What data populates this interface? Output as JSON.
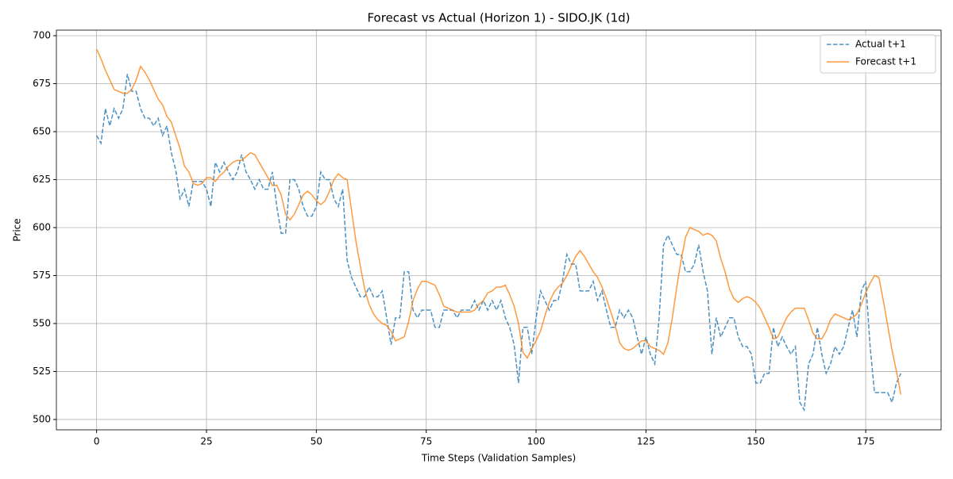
{
  "chart_data": {
    "type": "line",
    "title": "Forecast vs Actual (Horizon 1) - SIDO.JK (1d)",
    "x_label": "Time Steps (Validation Samples)",
    "y_label": "Price",
    "x": [
      0,
      1,
      2,
      3,
      4,
      5,
      6,
      7,
      8,
      9,
      10,
      11,
      12,
      13,
      14,
      15,
      16,
      17,
      18,
      19,
      20,
      21,
      22,
      23,
      24,
      25,
      26,
      27,
      28,
      29,
      30,
      31,
      32,
      33,
      34,
      35,
      36,
      37,
      38,
      39,
      40,
      41,
      42,
      43,
      44,
      45,
      46,
      47,
      48,
      49,
      50,
      51,
      52,
      53,
      54,
      55,
      56,
      57,
      58,
      59,
      60,
      61,
      62,
      63,
      64,
      65,
      66,
      67,
      68,
      69,
      70,
      71,
      72,
      73,
      74,
      75,
      76,
      77,
      78,
      79,
      80,
      81,
      82,
      83,
      84,
      85,
      86,
      87,
      88,
      89,
      90,
      91,
      92,
      93,
      94,
      95,
      96,
      97,
      98,
      99,
      100,
      101,
      102,
      103,
      104,
      105,
      106,
      107,
      108,
      109,
      110,
      111,
      112,
      113,
      114,
      115,
      116,
      117,
      118,
      119,
      120,
      121,
      122,
      123,
      124,
      125,
      126,
      127,
      128,
      129,
      130,
      131,
      132,
      133,
      134,
      135,
      136,
      137,
      138,
      139,
      140,
      141,
      142,
      143,
      144,
      145,
      146,
      147,
      148,
      149,
      150,
      151,
      152,
      153,
      154,
      155,
      156,
      157,
      158,
      159,
      160,
      161,
      162,
      163,
      164,
      165,
      166,
      167,
      168,
      169,
      170,
      171,
      172,
      173,
      174,
      175,
      176,
      177,
      178,
      179,
      180,
      181,
      182,
      183
    ],
    "series": [
      {
        "name": "Actual t+1",
        "color": "#1f77b4",
        "dashed": true,
        "values": [
          648,
          644,
          662,
          653,
          662,
          657,
          662,
          680,
          671,
          671,
          662,
          657,
          657,
          653,
          657,
          648,
          653,
          639,
          630,
          615,
          620,
          611,
          624,
          624,
          624,
          620,
          611,
          634,
          629,
          634,
          629,
          625,
          629,
          638,
          629,
          625,
          620,
          625,
          620,
          620,
          629,
          611,
          597,
          597,
          625,
          625,
          620,
          611,
          606,
          606,
          611,
          629,
          625,
          625,
          615,
          611,
          620,
          583,
          574,
          569,
          564,
          564,
          569,
          564,
          564,
          567,
          553,
          539,
          553,
          553,
          577,
          577,
          557,
          553,
          557,
          557,
          557,
          548,
          548,
          557,
          557,
          557,
          553,
          557,
          557,
          557,
          562,
          557,
          562,
          557,
          562,
          557,
          562,
          553,
          548,
          539,
          519,
          548,
          548,
          534,
          553,
          567,
          562,
          557,
          562,
          562,
          572,
          586,
          581,
          581,
          567,
          567,
          567,
          572,
          562,
          567,
          557,
          548,
          548,
          557,
          553,
          557,
          553,
          543,
          534,
          543,
          534,
          529,
          553,
          591,
          596,
          591,
          586,
          586,
          577,
          577,
          581,
          591,
          577,
          567,
          534,
          553,
          543,
          548,
          553,
          553,
          543,
          538,
          538,
          534,
          519,
          519,
          524,
          524,
          548,
          538,
          543,
          538,
          534,
          538,
          509,
          505,
          529,
          534,
          548,
          534,
          524,
          529,
          538,
          534,
          538,
          548,
          557,
          543,
          567,
          572,
          538,
          514,
          514,
          514,
          514,
          509,
          519,
          524
        ]
      },
      {
        "name": "Forecast t+1",
        "color": "#ff7f0e",
        "dashed": false,
        "values": [
          693,
          688,
          682,
          677,
          672,
          671,
          670,
          670,
          672,
          677,
          684,
          681,
          677,
          672,
          667,
          664,
          658,
          655,
          648,
          641,
          632,
          629,
          623,
          622,
          623,
          626,
          626,
          624,
          627,
          629,
          632,
          634,
          635,
          635,
          637,
          639,
          638,
          634,
          630,
          626,
          622,
          622,
          617,
          607,
          604,
          607,
          612,
          617,
          619,
          617,
          614,
          612,
          614,
          619,
          625,
          628,
          626,
          625,
          609,
          593,
          580,
          568,
          560,
          555,
          552,
          550,
          549,
          546,
          541,
          542,
          543,
          551,
          562,
          568,
          572,
          572,
          571,
          570,
          565,
          559,
          558,
          557,
          556,
          556,
          556,
          556,
          557,
          560,
          562,
          566,
          567,
          569,
          569,
          570,
          565,
          559,
          550,
          535,
          532,
          537,
          541,
          546,
          554,
          561,
          566,
          569,
          571,
          575,
          580,
          585,
          588,
          585,
          581,
          577,
          574,
          569,
          563,
          556,
          549,
          540,
          537,
          536,
          537,
          539,
          541,
          541,
          538,
          537,
          536,
          534,
          540,
          553,
          569,
          583,
          595,
          600,
          599,
          598,
          596,
          597,
          596,
          593,
          584,
          577,
          568,
          563,
          561,
          563,
          564,
          563,
          561,
          558,
          553,
          548,
          542,
          543,
          548,
          553,
          556,
          558,
          558,
          558,
          552,
          545,
          542,
          542,
          546,
          552,
          555,
          554,
          553,
          552,
          553,
          555,
          560,
          566,
          571,
          575,
          574,
          562,
          549,
          536,
          525,
          513
        ]
      }
    ],
    "xlim": [
      -9.15,
      192.15
    ],
    "ylim": [
      494.6,
      702.9
    ],
    "xticks": [
      0,
      25,
      50,
      75,
      100,
      125,
      150,
      175
    ],
    "yticks": [
      500,
      525,
      550,
      575,
      600,
      625,
      650,
      675,
      700
    ],
    "grid": true,
    "legend": "upper right"
  }
}
